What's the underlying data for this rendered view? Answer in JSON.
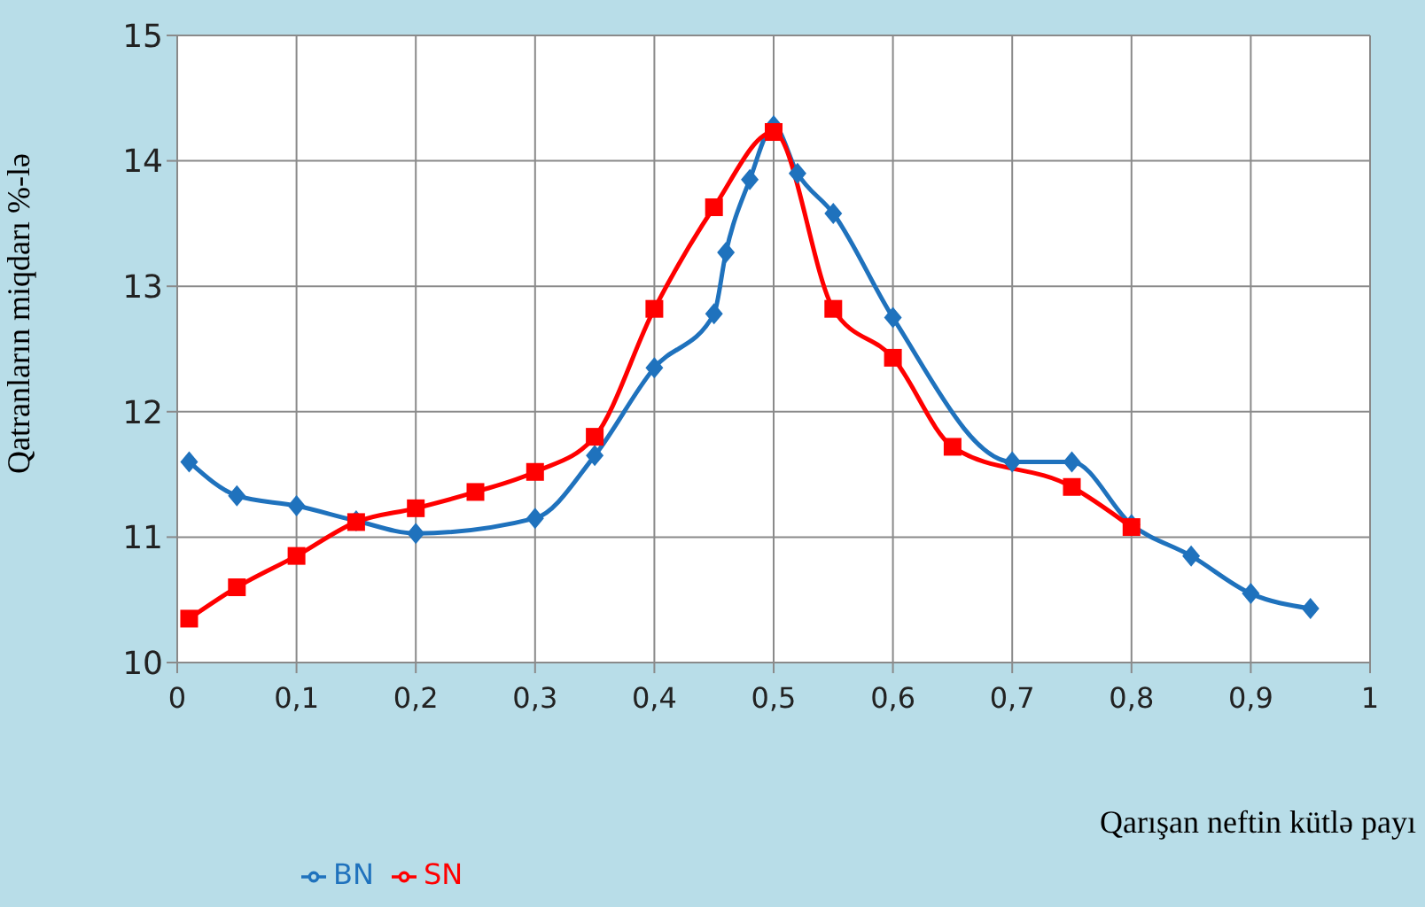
{
  "chart_data": {
    "type": "line",
    "xlabel": "Qarışan neftin kütlə payı",
    "ylabel": "Qatranların miqdarı %-lə",
    "xlim": [
      0,
      1
    ],
    "xticks": [
      0,
      {
        "value": 0.1,
        "label": "0,1"
      },
      {
        "value": 0.2,
        "label": "0,2"
      },
      {
        "value": 0.3,
        "label": "0,3"
      },
      {
        "value": 0.4,
        "label": "0,4"
      },
      {
        "value": 0.5,
        "label": "0,5"
      },
      {
        "value": 0.6,
        "label": "0,6"
      },
      {
        "value": 0.7,
        "label": "0,7"
      },
      {
        "value": 0.8,
        "label": "0,8"
      },
      {
        "value": 0.9,
        "label": "0,9"
      },
      1
    ],
    "ylim": [
      10,
      15
    ],
    "yticks": [
      10,
      11,
      12,
      13,
      14,
      15
    ],
    "grid": true,
    "legend": "bottom",
    "line_style": "solid",
    "series": [
      {
        "name": "BN",
        "color": "#1f72bd",
        "marker": "diamond",
        "x": [
          0.01,
          0.05,
          0.1,
          0.15,
          0.2,
          0.3,
          0.35,
          0.4,
          0.45,
          0.46,
          0.48,
          0.5,
          0.52,
          0.55,
          0.6,
          0.7,
          0.75,
          0.8,
          0.85,
          0.9,
          0.95
        ],
        "values": [
          11.6,
          11.33,
          11.25,
          11.13,
          11.03,
          11.15,
          11.65,
          12.35,
          12.78,
          13.27,
          13.85,
          14.28,
          13.9,
          13.58,
          12.75,
          11.6,
          11.6,
          11.1,
          10.85,
          10.55,
          10.43
        ]
      },
      {
        "name": "SN",
        "color": "#ff0000",
        "marker": "square",
        "x": [
          0.01,
          0.05,
          0.1,
          0.15,
          0.2,
          0.25,
          0.3,
          0.35,
          0.4,
          0.45,
          0.5,
          0.55,
          0.6,
          0.65,
          0.75,
          0.8
        ],
        "values": [
          10.35,
          10.6,
          10.85,
          11.12,
          11.23,
          11.36,
          11.52,
          11.8,
          12.82,
          13.63,
          14.23,
          12.82,
          12.43,
          11.72,
          11.4,
          11.08
        ]
      }
    ]
  }
}
